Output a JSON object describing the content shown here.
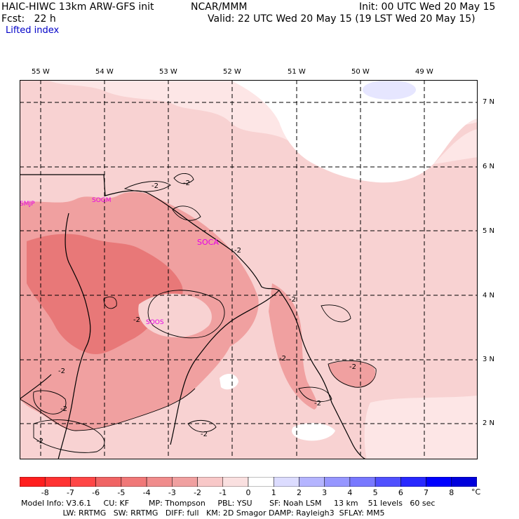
{
  "header": {
    "model": "HAIC-HIWC 13km ARW-GFS init",
    "org": "NCAR/MMM",
    "init": "Init: 00 UTC Wed 20 May 15",
    "fcst": "Fcst:   22 h",
    "valid": "Valid: 22 UTC Wed 20 May 15 (19 LST Wed 20 May 15)",
    "field": "Lifted index"
  },
  "map": {
    "lon_labels": [
      "55 W",
      "54 W",
      "53 W",
      "52 W",
      "51 W",
      "50 W",
      "49 W"
    ],
    "lat_labels": [
      "7 N",
      "6 N",
      "5 N",
      "4 N",
      "3 N",
      "2 N"
    ],
    "stations": [
      "SMJP",
      "SOGM",
      "SOCA",
      "SOOS"
    ],
    "contour_label": "-2",
    "colors": {
      "bg_pink": "#f8d2d2",
      "mid_pink": "#f0a0a0",
      "deep_pink": "#e87878",
      "pale": "#fde6e6",
      "white": "#ffffff",
      "blue_patch": "#e6e6ff",
      "station": "#e600e6"
    }
  },
  "colorbar": {
    "ticks": [
      "-8",
      "-7",
      "-6",
      "-5",
      "-4",
      "-3",
      "-2",
      "-1",
      "0",
      "1",
      "2",
      "3",
      "4",
      "5",
      "6",
      "7",
      "8"
    ],
    "unit": "°C",
    "colors": [
      "#ff1e1e",
      "#ff3232",
      "#ff4646",
      "#f06464",
      "#f07878",
      "#f08c8c",
      "#f0a0a0",
      "#f8c8c8",
      "#fae0e0",
      "#ffffff",
      "#dcdcff",
      "#b4b4ff",
      "#9696ff",
      "#7878ff",
      "#5050ff",
      "#2828ff",
      "#0000ff",
      "#0000dc"
    ]
  },
  "footer": {
    "line1": "Model Info: V3.6.1     CU: KF        MP: Thompson     PBL: YSU       SF: Noah LSM     13 km    51 levels   60 sec",
    "line2": "                 LW: RRTMG   SW: RRTMG   DIFF: full   KM: 2D Smagor DAMP: Rayleigh3  SFLAY: MM5"
  }
}
